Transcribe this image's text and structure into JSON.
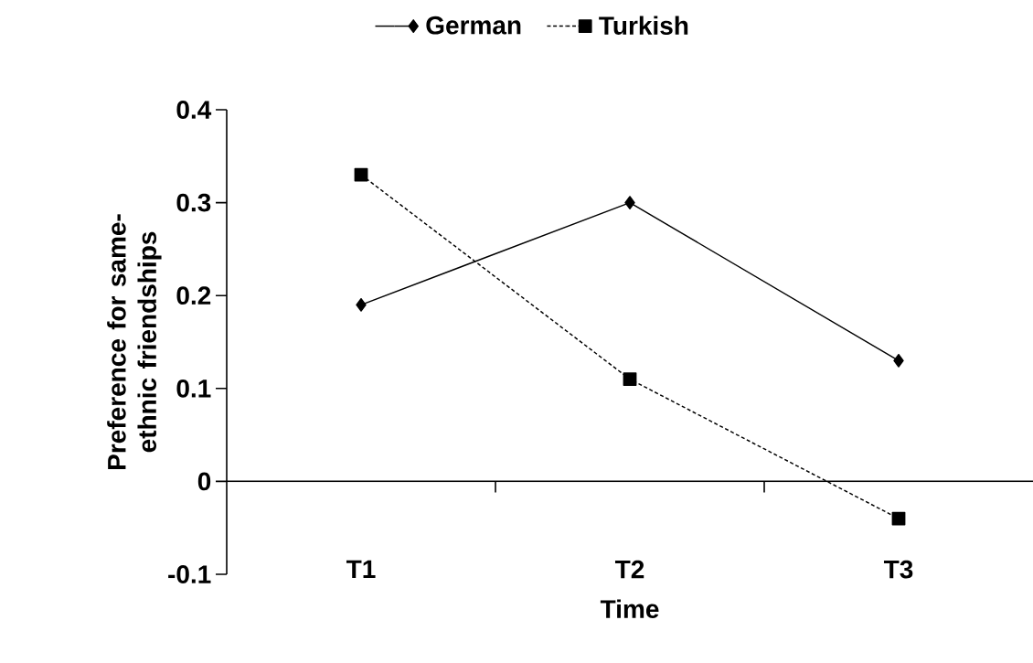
{
  "chart_data": {
    "type": "line",
    "xlabel": "Time",
    "ylabel": "Preference for same-ethnic friendships",
    "categories": [
      "T1",
      "T2",
      "T3"
    ],
    "series": [
      {
        "name": "German",
        "color": "#000000",
        "values": [
          0.19,
          0.3,
          0.13
        ],
        "marker": "diamond",
        "line_style": "solid"
      },
      {
        "name": "Turkish",
        "color": "#000000",
        "values": [
          0.33,
          0.11,
          -0.04
        ],
        "marker": "square",
        "line_style": "dashed"
      }
    ],
    "ylim": [
      -0.1,
      0.4
    ],
    "yticks": [
      -0.1,
      0,
      0.1,
      0.2,
      0.3,
      0.4
    ],
    "legend": "top"
  }
}
